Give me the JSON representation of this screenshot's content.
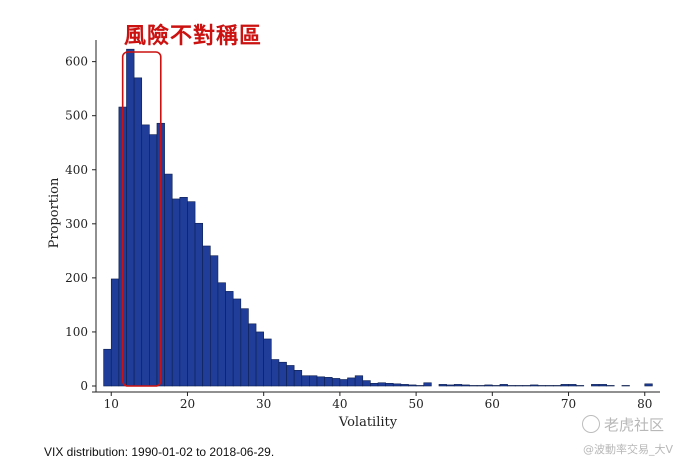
{
  "annotation": {
    "label": "風險不對稱區",
    "color": "#cc1111"
  },
  "caption": "VIX distribution: 1990-01-02 to 2018-06-29.",
  "watermark": {
    "brand": "老虎社区",
    "handle": "@波動率交易_大V"
  },
  "chart_data": {
    "type": "bar",
    "xlabel": "Volatility",
    "ylabel": "Proportion",
    "xlim": [
      8,
      82
    ],
    "ylim": [
      0,
      640
    ],
    "xticks": [
      10,
      20,
      30,
      40,
      50,
      60,
      70,
      80
    ],
    "yticks": [
      0,
      100,
      200,
      300,
      400,
      500,
      600
    ],
    "bin_width": 1,
    "bar_color": "#1f3d99",
    "bin_starts": [
      9,
      10,
      11,
      12,
      13,
      14,
      15,
      16,
      17,
      18,
      19,
      20,
      21,
      22,
      23,
      24,
      25,
      26,
      27,
      28,
      29,
      30,
      31,
      32,
      33,
      34,
      35,
      36,
      37,
      38,
      39,
      40,
      41,
      42,
      43,
      44,
      45,
      46,
      47,
      48,
      49,
      50,
      51,
      52,
      53,
      54,
      55,
      56,
      57,
      58,
      59,
      60,
      61,
      62,
      63,
      64,
      65,
      66,
      67,
      68,
      69,
      70,
      71,
      72,
      73,
      74,
      75,
      76,
      77,
      78,
      79,
      80
    ],
    "values": [
      68,
      198,
      516,
      623,
      570,
      483,
      465,
      486,
      392,
      346,
      349,
      341,
      301,
      259,
      241,
      191,
      175,
      161,
      143,
      115,
      100,
      87,
      49,
      44,
      38,
      29,
      19,
      19,
      17,
      16,
      14,
      12,
      15,
      19,
      10,
      5,
      6,
      5,
      4,
      3,
      2,
      1,
      6,
      0,
      3,
      2,
      3,
      2,
      1,
      1,
      2,
      1,
      3,
      1,
      1,
      1,
      2,
      1,
      1,
      1,
      3,
      3,
      1,
      0,
      3,
      3,
      1,
      0,
      1,
      0,
      0,
      4
    ],
    "highlight_range": [
      11.5,
      16.5
    ],
    "highlight_color": "#cc1111"
  }
}
